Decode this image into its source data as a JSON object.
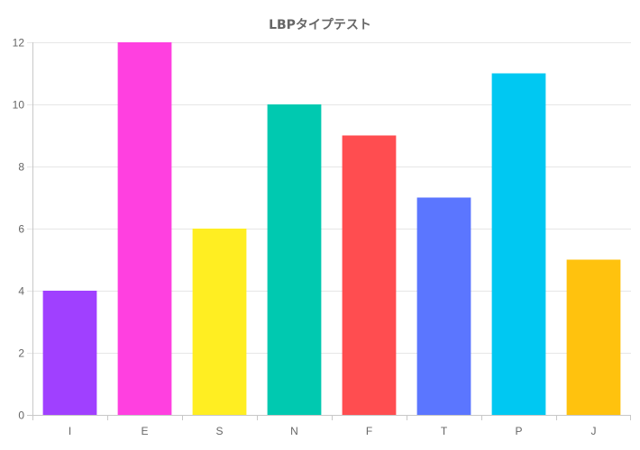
{
  "chart_data": {
    "type": "bar",
    "title": "LBPタイプテスト",
    "categories": [
      "I",
      "E",
      "S",
      "N",
      "F",
      "T",
      "P",
      "J"
    ],
    "values": [
      4,
      12,
      6,
      10,
      9,
      7,
      11,
      5
    ],
    "colors": [
      "#a040ff",
      "#ff40e0",
      "#ffee22",
      "#00c9b0",
      "#ff4d50",
      "#5b76ff",
      "#00c8f2",
      "#ffc20e"
    ],
    "ylim": [
      0,
      12
    ],
    "yticks": [
      0,
      2,
      4,
      6,
      8,
      10,
      12
    ],
    "grid": true,
    "legend": "none"
  }
}
